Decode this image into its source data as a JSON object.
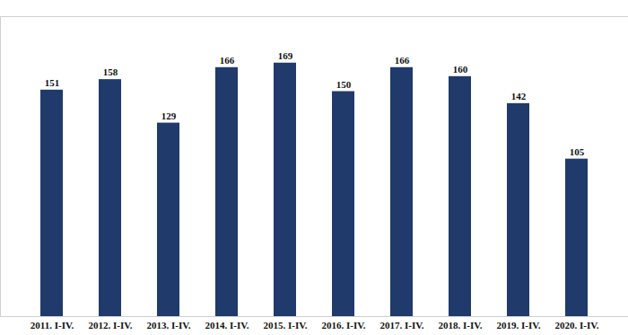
{
  "chart_data": {
    "type": "bar",
    "categories": [
      "2011. I-IV.",
      "2012. I-IV.",
      "2013. I-IV.",
      "2014. I-IV.",
      "2015. I-IV.",
      "2016. I-IV.",
      "2017. I-IV.",
      "2018. I-IV.",
      "2019. I-IV.",
      "2020. I-IV."
    ],
    "values": [
      151,
      158,
      129,
      166,
      169,
      150,
      166,
      160,
      142,
      105
    ],
    "color": "#1f3a6b",
    "ylim": [
      0,
      200
    ],
    "yticks": [],
    "grid": false,
    "data_labels": true,
    "tick_labels": "x"
  }
}
